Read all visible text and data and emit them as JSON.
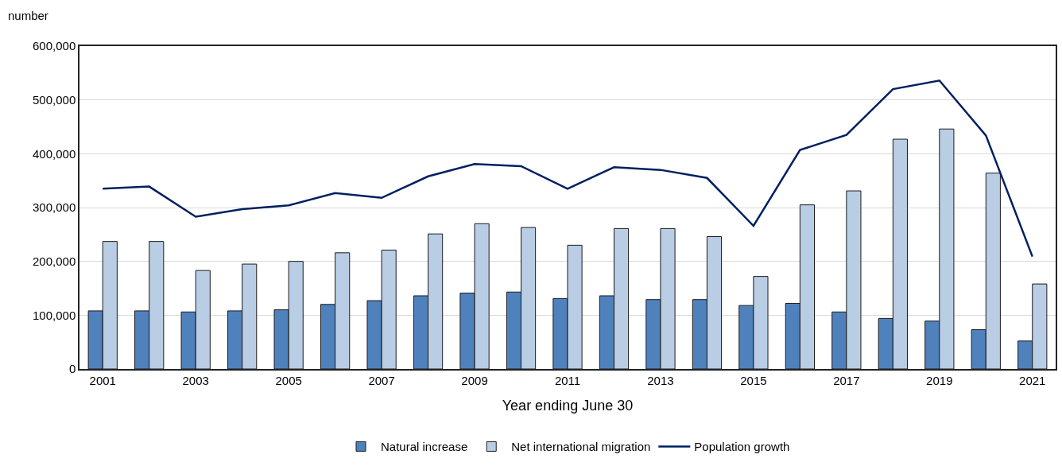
{
  "chart_data": {
    "type": "bar",
    "ylabel": "number",
    "xlabel": "Year ending June 30",
    "categories": [
      "2001",
      null,
      "2003",
      null,
      "2005",
      null,
      "2007",
      null,
      "2009",
      null,
      "2011",
      null,
      "2013",
      null,
      "2015",
      null,
      "2017",
      null,
      "2019",
      null,
      "2021"
    ],
    "series": [
      {
        "name": "Natural increase",
        "color": "#4f81bd",
        "values": [
          108000,
          108000,
          106000,
          108000,
          110000,
          120000,
          127000,
          136000,
          141000,
          143000,
          131000,
          136000,
          129000,
          129000,
          118000,
          122000,
          106000,
          94000,
          89000,
          73000,
          52000
        ]
      },
      {
        "name": "Net international migration",
        "color": "#b9cde5",
        "values": [
          237000,
          237000,
          183000,
          195000,
          200000,
          216000,
          221000,
          251000,
          270000,
          263000,
          230000,
          261000,
          261000,
          246000,
          172000,
          305000,
          331000,
          427000,
          446000,
          364000,
          158000
        ]
      },
      {
        "name": "Population growth",
        "type": "line",
        "color": "#002060",
        "values": [
          335000,
          339000,
          283000,
          297000,
          304000,
          327000,
          318000,
          358000,
          381000,
          377000,
          335000,
          375000,
          370000,
          355000,
          266000,
          407000,
          435000,
          520000,
          536000,
          434000,
          209000
        ]
      }
    ],
    "ylim": [
      0,
      600000
    ],
    "yticks": [
      {
        "value": 0,
        "label": "0"
      },
      {
        "value": 100000,
        "label": "100,000"
      },
      {
        "value": 200000,
        "label": "200,000"
      },
      {
        "value": 300000,
        "label": "300,000"
      },
      {
        "value": 400000,
        "label": "400,000"
      },
      {
        "value": 500000,
        "label": "500,000"
      },
      {
        "value": 600000,
        "label": "600,000"
      }
    ],
    "grid": "y",
    "legend": "bottom",
    "line_style": "solid",
    "marker": "none"
  }
}
